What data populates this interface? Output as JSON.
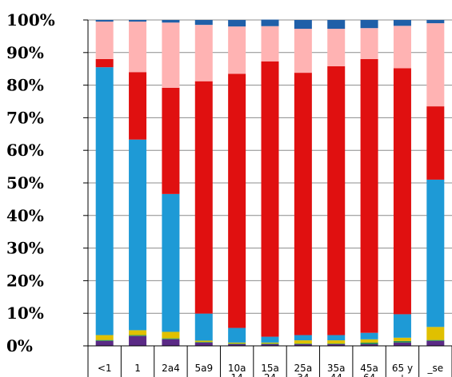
{
  "chart_data": {
    "type": "bar",
    "stacked": true,
    "percent_stacked": true,
    "categories": [
      [
        "<1"
      ],
      [
        "1"
      ],
      [
        "2a4"
      ],
      [
        "5a9"
      ],
      [
        "10a",
        "14"
      ],
      [
        "15a",
        "24"
      ],
      [
        "25a",
        "34"
      ],
      [
        "35a",
        "44"
      ],
      [
        "45a",
        "64"
      ],
      [
        "65 y",
        "+"
      ],
      [
        "_se"
      ]
    ],
    "y_ticks": [
      "0%",
      "10%",
      "20%",
      "30%",
      "40%",
      "50%",
      "60%",
      "70%",
      "80%",
      "90%",
      "100%"
    ],
    "ylim": [
      0,
      100
    ],
    "grid": true,
    "legend": "none",
    "series": [
      {
        "color": "#5B2A86",
        "values": [
          1.5,
          3.0,
          2.0,
          1.0,
          0.5,
          0.5,
          0.5,
          0.5,
          0.5,
          1.0,
          1.5
        ]
      },
      {
        "color": "#2E8B57",
        "values": [
          0.3,
          0.3,
          0.3,
          0.2,
          0.2,
          0.2,
          0.2,
          0.2,
          0.5,
          0.5,
          0.3
        ]
      },
      {
        "color": "#E0C000",
        "values": [
          1.5,
          1.5,
          2.0,
          0.4,
          0.3,
          0.3,
          1.0,
          1.0,
          1.0,
          1.0,
          4.0
        ]
      },
      {
        "color": "#1E9AD6",
        "values": [
          82.2,
          58.5,
          42.3,
          8.3,
          4.5,
          1.8,
          1.6,
          1.6,
          2.0,
          7.2,
          45.2
        ]
      },
      {
        "color": "#E01010",
        "values": [
          2.5,
          20.7,
          32.6,
          71.3,
          78.0,
          84.5,
          80.5,
          82.5,
          84.0,
          75.5,
          22.5
        ]
      },
      {
        "color": "#FFB3B3",
        "values": [
          11.5,
          15.5,
          20.0,
          17.3,
          14.5,
          10.8,
          13.5,
          11.5,
          9.5,
          13.0,
          25.5
        ]
      },
      {
        "color": "#1F5FA8",
        "values": [
          0.5,
          0.5,
          0.8,
          1.5,
          2.0,
          2.0,
          2.7,
          2.7,
          2.5,
          1.8,
          1.0
        ]
      }
    ]
  }
}
